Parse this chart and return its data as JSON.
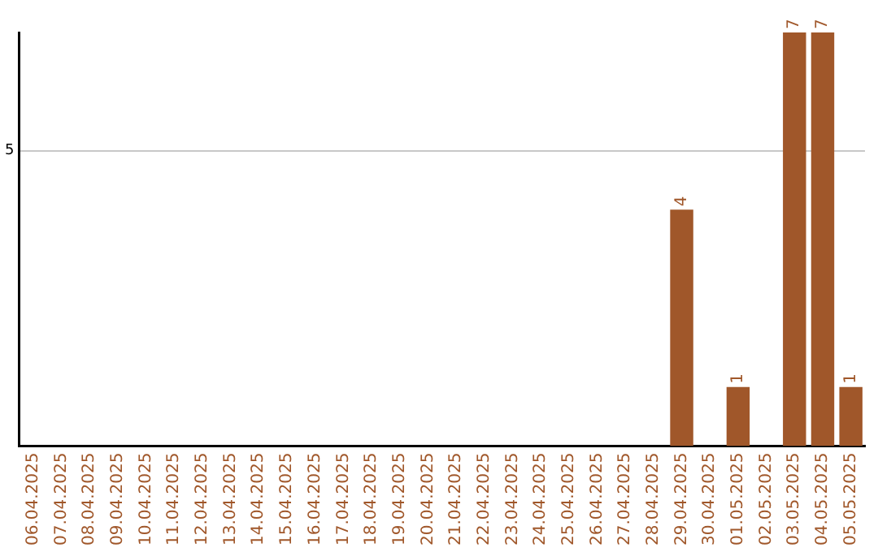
{
  "chart_data": {
    "type": "bar",
    "categories": [
      "06.04.2025",
      "07.04.2025",
      "08.04.2025",
      "09.04.2025",
      "10.04.2025",
      "11.04.2025",
      "12.04.2025",
      "13.04.2025",
      "14.04.2025",
      "15.04.2025",
      "16.04.2025",
      "17.04.2025",
      "18.04.2025",
      "19.04.2025",
      "20.04.2025",
      "21.04.2025",
      "22.04.2025",
      "23.04.2025",
      "24.04.2025",
      "25.04.2025",
      "26.04.2025",
      "27.04.2025",
      "28.04.2025",
      "29.04.2025",
      "30.04.2025",
      "01.05.2025",
      "02.05.2025",
      "03.05.2025",
      "04.05.2025",
      "05.05.2025"
    ],
    "values": [
      null,
      null,
      null,
      null,
      null,
      null,
      null,
      null,
      null,
      null,
      null,
      null,
      null,
      null,
      null,
      null,
      null,
      null,
      null,
      null,
      null,
      null,
      null,
      4,
      null,
      1,
      null,
      7,
      7,
      1
    ],
    "value_labels": [
      null,
      null,
      null,
      null,
      null,
      null,
      null,
      null,
      null,
      null,
      null,
      null,
      null,
      null,
      null,
      null,
      null,
      null,
      null,
      null,
      null,
      null,
      null,
      "4",
      null,
      "1",
      null,
      "7",
      "7",
      "1"
    ],
    "color": "#a0572a",
    "ylim": [
      0,
      7
    ],
    "yticks": [
      5
    ],
    "grid": "y",
    "legend": false
  }
}
